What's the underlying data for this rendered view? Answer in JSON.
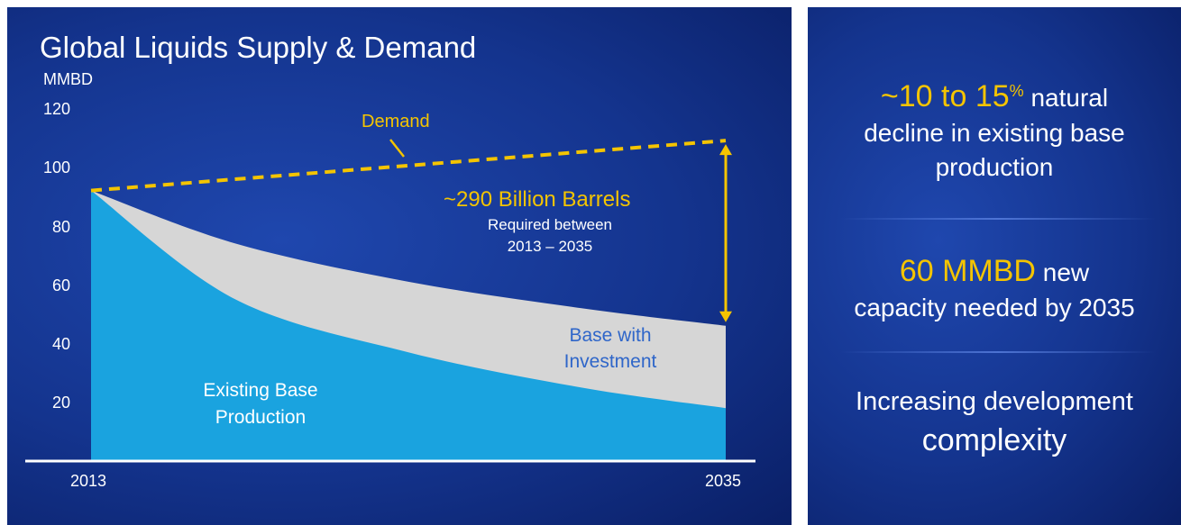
{
  "chart_data": {
    "type": "area",
    "title": "Global Liquids Supply & Demand",
    "ylabel": "MMBD",
    "x_categories": [
      "2013",
      "2035"
    ],
    "yticks": [
      20,
      40,
      60,
      80,
      100,
      120
    ],
    "ylim": [
      0,
      120
    ],
    "series": [
      {
        "name": "Demand",
        "x": [
          2013,
          2035
        ],
        "values": [
          92,
          109
        ],
        "style": "dashed-line",
        "color": "#f4c400"
      },
      {
        "name": "Base with Investment",
        "x": [
          2013,
          2018,
          2024,
          2030,
          2035
        ],
        "values": [
          92,
          74,
          61,
          52,
          46
        ],
        "color": "#d6d6d6"
      },
      {
        "name": "Existing Base Production",
        "x": [
          2013,
          2018,
          2024,
          2030,
          2035
        ],
        "values": [
          92,
          55,
          37,
          25,
          18
        ],
        "color": "#1aa3df"
      }
    ],
    "annotations": {
      "gap_title": "~290 Billion Barrels",
      "gap_line1": "Required between",
      "gap_line2": "2013 – 2035",
      "demand_label": "Demand",
      "base_invest_line1": "Base with",
      "base_invest_line2": "Investment",
      "existing_line1": "Existing Base",
      "existing_line2": "Production"
    }
  },
  "right_panel": {
    "stat1": {
      "value": "~10 to 15",
      "sup": "%",
      "rest": " natural",
      "line2": "decline in existing base",
      "line3": "production"
    },
    "stat2": {
      "value": "60 MMBD",
      "rest": " new",
      "line2": "capacity needed by 2035"
    },
    "stat3": {
      "line1": "Increasing development",
      "highlight": "complexity"
    }
  },
  "colors": {
    "background": "#14348e",
    "accent": "#f4c400",
    "existing": "#1aa3df",
    "investment": "#d6d6d6"
  }
}
